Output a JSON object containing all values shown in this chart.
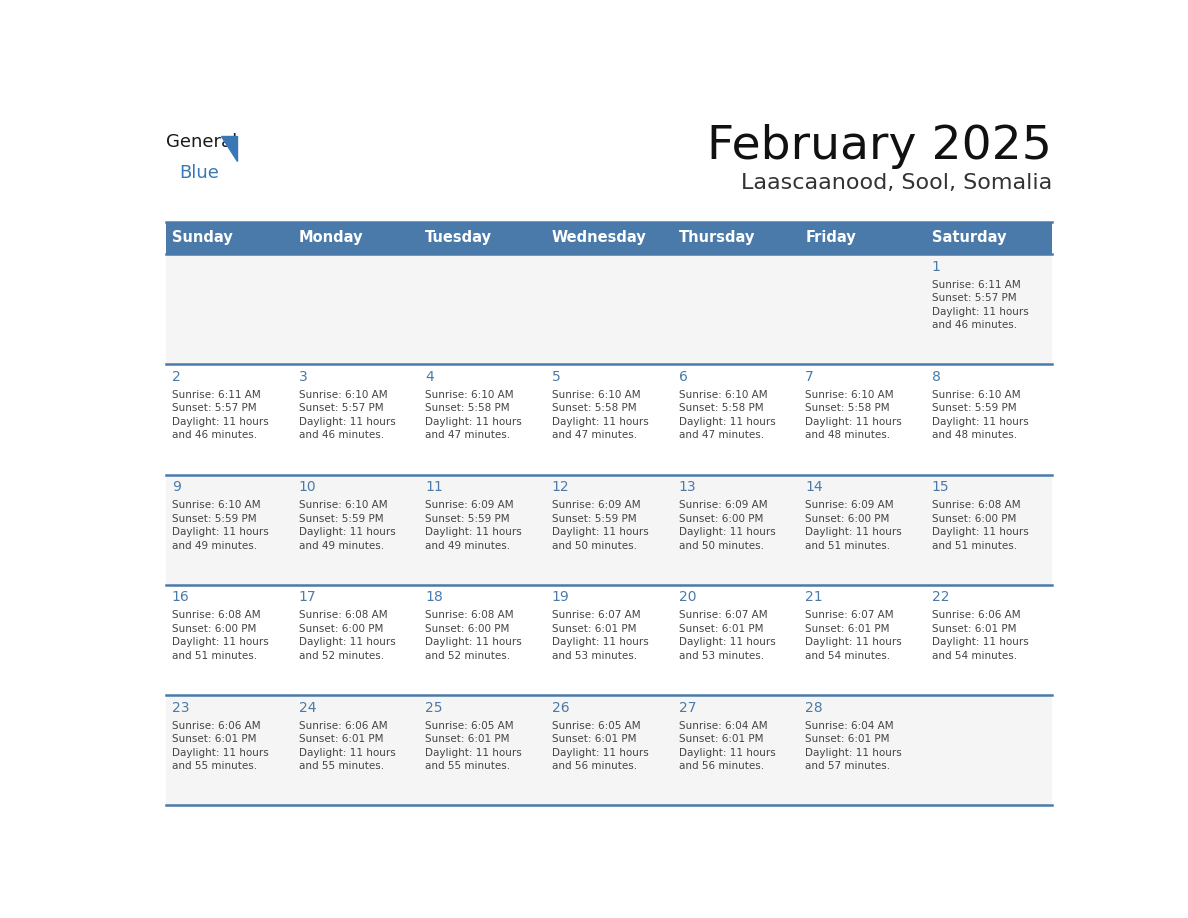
{
  "title": "February 2025",
  "subtitle": "Laascaanood, Sool, Somalia",
  "days_of_week": [
    "Sunday",
    "Monday",
    "Tuesday",
    "Wednesday",
    "Thursday",
    "Friday",
    "Saturday"
  ],
  "header_bg": "#4a7aaa",
  "header_text": "#ffffff",
  "cell_bg_light": "#f5f5f5",
  "cell_bg_white": "#ffffff",
  "border_color": "#4a7aaa",
  "day_number_color": "#4a7aaa",
  "text_color": "#444444",
  "calendar_data": [
    [
      null,
      null,
      null,
      null,
      null,
      null,
      {
        "day": 1,
        "sunrise": "6:11 AM",
        "sunset": "5:57 PM",
        "daylight": "11 hours and 46 minutes."
      }
    ],
    [
      {
        "day": 2,
        "sunrise": "6:11 AM",
        "sunset": "5:57 PM",
        "daylight": "11 hours and 46 minutes."
      },
      {
        "day": 3,
        "sunrise": "6:10 AM",
        "sunset": "5:57 PM",
        "daylight": "11 hours and 46 minutes."
      },
      {
        "day": 4,
        "sunrise": "6:10 AM",
        "sunset": "5:58 PM",
        "daylight": "11 hours and 47 minutes."
      },
      {
        "day": 5,
        "sunrise": "6:10 AM",
        "sunset": "5:58 PM",
        "daylight": "11 hours and 47 minutes."
      },
      {
        "day": 6,
        "sunrise": "6:10 AM",
        "sunset": "5:58 PM",
        "daylight": "11 hours and 47 minutes."
      },
      {
        "day": 7,
        "sunrise": "6:10 AM",
        "sunset": "5:58 PM",
        "daylight": "11 hours and 48 minutes."
      },
      {
        "day": 8,
        "sunrise": "6:10 AM",
        "sunset": "5:59 PM",
        "daylight": "11 hours and 48 minutes."
      }
    ],
    [
      {
        "day": 9,
        "sunrise": "6:10 AM",
        "sunset": "5:59 PM",
        "daylight": "11 hours and 49 minutes."
      },
      {
        "day": 10,
        "sunrise": "6:10 AM",
        "sunset": "5:59 PM",
        "daylight": "11 hours and 49 minutes."
      },
      {
        "day": 11,
        "sunrise": "6:09 AM",
        "sunset": "5:59 PM",
        "daylight": "11 hours and 49 minutes."
      },
      {
        "day": 12,
        "sunrise": "6:09 AM",
        "sunset": "5:59 PM",
        "daylight": "11 hours and 50 minutes."
      },
      {
        "day": 13,
        "sunrise": "6:09 AM",
        "sunset": "6:00 PM",
        "daylight": "11 hours and 50 minutes."
      },
      {
        "day": 14,
        "sunrise": "6:09 AM",
        "sunset": "6:00 PM",
        "daylight": "11 hours and 51 minutes."
      },
      {
        "day": 15,
        "sunrise": "6:08 AM",
        "sunset": "6:00 PM",
        "daylight": "11 hours and 51 minutes."
      }
    ],
    [
      {
        "day": 16,
        "sunrise": "6:08 AM",
        "sunset": "6:00 PM",
        "daylight": "11 hours and 51 minutes."
      },
      {
        "day": 17,
        "sunrise": "6:08 AM",
        "sunset": "6:00 PM",
        "daylight": "11 hours and 52 minutes."
      },
      {
        "day": 18,
        "sunrise": "6:08 AM",
        "sunset": "6:00 PM",
        "daylight": "11 hours and 52 minutes."
      },
      {
        "day": 19,
        "sunrise": "6:07 AM",
        "sunset": "6:01 PM",
        "daylight": "11 hours and 53 minutes."
      },
      {
        "day": 20,
        "sunrise": "6:07 AM",
        "sunset": "6:01 PM",
        "daylight": "11 hours and 53 minutes."
      },
      {
        "day": 21,
        "sunrise": "6:07 AM",
        "sunset": "6:01 PM",
        "daylight": "11 hours and 54 minutes."
      },
      {
        "day": 22,
        "sunrise": "6:06 AM",
        "sunset": "6:01 PM",
        "daylight": "11 hours and 54 minutes."
      }
    ],
    [
      {
        "day": 23,
        "sunrise": "6:06 AM",
        "sunset": "6:01 PM",
        "daylight": "11 hours and 55 minutes."
      },
      {
        "day": 24,
        "sunrise": "6:06 AM",
        "sunset": "6:01 PM",
        "daylight": "11 hours and 55 minutes."
      },
      {
        "day": 25,
        "sunrise": "6:05 AM",
        "sunset": "6:01 PM",
        "daylight": "11 hours and 55 minutes."
      },
      {
        "day": 26,
        "sunrise": "6:05 AM",
        "sunset": "6:01 PM",
        "daylight": "11 hours and 56 minutes."
      },
      {
        "day": 27,
        "sunrise": "6:04 AM",
        "sunset": "6:01 PM",
        "daylight": "11 hours and 56 minutes."
      },
      {
        "day": 28,
        "sunrise": "6:04 AM",
        "sunset": "6:01 PM",
        "daylight": "11 hours and 57 minutes."
      },
      null
    ]
  ],
  "logo_text_general": "General",
  "logo_text_blue": "Blue"
}
